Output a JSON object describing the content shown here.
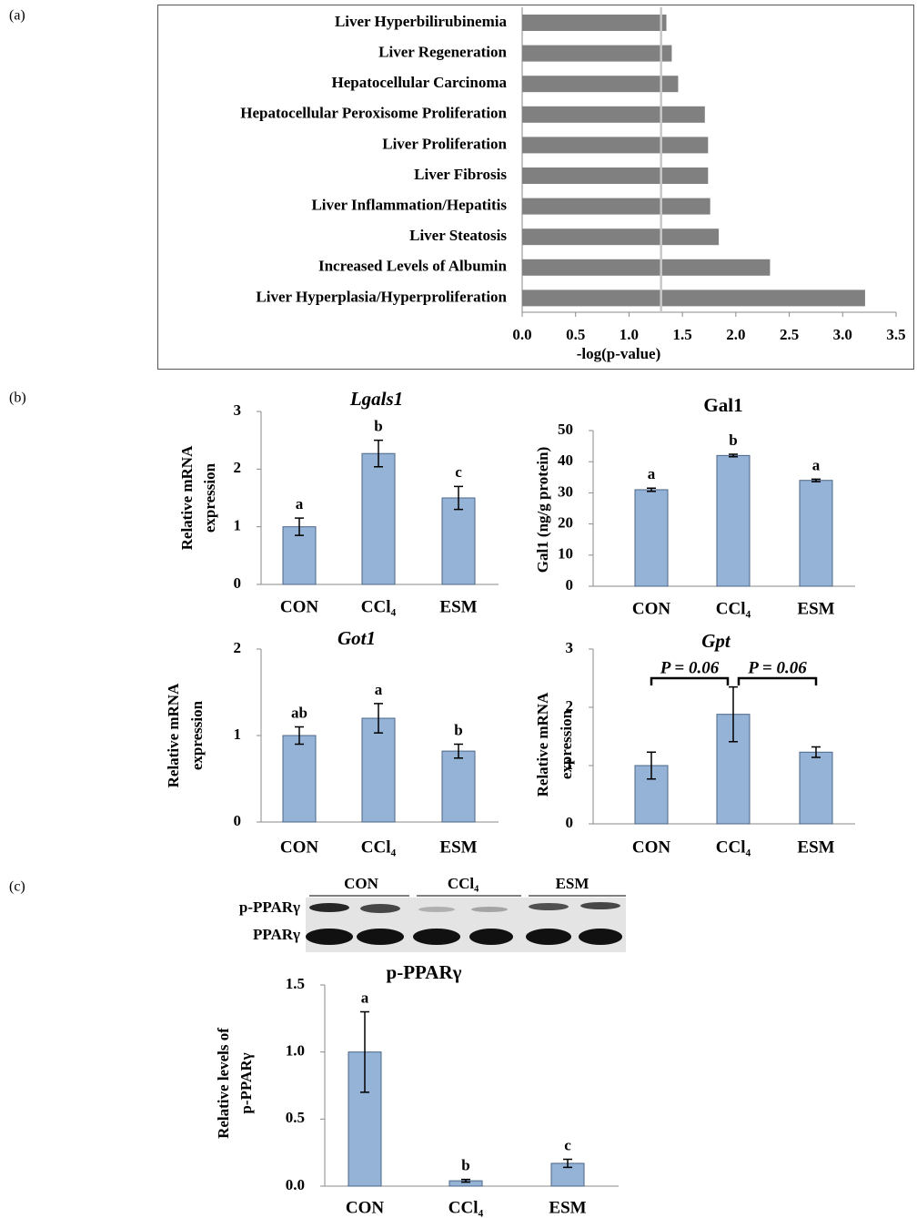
{
  "panel_labels": [
    "(a)",
    "(b)",
    "(c)"
  ],
  "chart_data": [
    {
      "type": "hbar",
      "xlabel": "-log(p-value)",
      "categories": [
        "Liver Hyperbilirubinemia",
        "Liver Regeneration",
        "Hepatocellular Carcinoma",
        "Hepatocellular Peroxisome Proliferation",
        "Liver Proliferation",
        "Liver Fibrosis",
        "Liver Inflammation/Hepatitis",
        "Liver Steatosis",
        "Increased Levels of Albumin",
        "Liver Hyperplasia/Hyperproliferation"
      ],
      "values": [
        1.35,
        1.4,
        1.46,
        1.71,
        1.74,
        1.74,
        1.76,
        1.84,
        2.32,
        3.21
      ],
      "color": "#808080",
      "threshold": 1.3,
      "threshold_color": "#c8c8c8",
      "xlim": [
        0,
        3.5
      ],
      "xticks": [
        {
          "value": 0,
          "label": "0.0"
        },
        {
          "value": 0.5,
          "label": "0.5"
        },
        {
          "value": 1,
          "label": "1.0"
        },
        {
          "value": 1.5,
          "label": "1.5"
        },
        {
          "value": 2,
          "label": "2.0"
        },
        {
          "value": 2.5,
          "label": "2.5"
        },
        {
          "value": 3,
          "label": "3.0"
        },
        {
          "value": 3.5,
          "label": "3.5"
        }
      ]
    },
    {
      "type": "bar",
      "title": "Lgals1",
      "ylabel": [
        "Relative mRNA",
        "expression"
      ],
      "categories": [
        "CON",
        "CCl₄",
        "ESM"
      ],
      "values": [
        1.0,
        2.27,
        1.5
      ],
      "errors": [
        0.15,
        0.23,
        0.2
      ],
      "letters": [
        "a",
        "b",
        "c"
      ],
      "color": "#95b3d7",
      "ylim": [
        0,
        3
      ],
      "yticks": [
        0,
        1,
        2,
        3
      ]
    },
    {
      "type": "bar",
      "title": "Gal1",
      "ylabel": [
        "Gal1 (ng/g protein)"
      ],
      "categories": [
        "CON",
        "CCl₄",
        "ESM"
      ],
      "values": [
        31,
        42,
        34
      ],
      "errors": [
        0.5,
        0.4,
        0.4
      ],
      "letters": [
        "a",
        "b",
        "a"
      ],
      "color": "#95b3d7",
      "ylim": [
        0,
        50
      ],
      "yticks": [
        0,
        10,
        20,
        30,
        40,
        50
      ]
    },
    {
      "type": "bar",
      "title": "Got1",
      "ylabel": [
        "Relative mRNA",
        "expression"
      ],
      "categories": [
        "CON",
        "CCl₄",
        "ESM"
      ],
      "values": [
        1.0,
        1.2,
        0.82
      ],
      "errors": [
        0.1,
        0.17,
        0.08
      ],
      "letters": [
        "ab",
        "a",
        "b"
      ],
      "color": "#95b3d7",
      "ylim": [
        0,
        2
      ],
      "yticks": [
        0,
        1,
        2
      ]
    },
    {
      "type": "bar",
      "title": "Gpt",
      "ylabel": [
        "Relative mRNA",
        "expression"
      ],
      "categories": [
        "CON",
        "CCl₄",
        "ESM"
      ],
      "values": [
        1.0,
        1.88,
        1.23
      ],
      "errors": [
        0.23,
        0.47,
        0.09
      ],
      "annotations": [
        "P = 0.06",
        "P = 0.06"
      ],
      "color": "#95b3d7",
      "ylim": [
        0,
        3
      ],
      "yticks": [
        0,
        1,
        2,
        3
      ]
    },
    {
      "type": "bar",
      "title": "p-PPARγ",
      "ylabel": [
        "Relative levels of",
        "p-PPARγ"
      ],
      "categories": [
        "CON",
        "CCl₄",
        "ESM"
      ],
      "values": [
        1.0,
        0.04,
        0.17
      ],
      "errors": [
        0.3,
        0.01,
        0.03
      ],
      "letters": [
        "a",
        "b",
        "c"
      ],
      "color": "#95b3d7",
      "ylim": [
        0,
        1.5
      ],
      "yticks": [
        {
          "value": 0,
          "label": "0.0"
        },
        {
          "value": 0.5,
          "label": "0.5"
        },
        {
          "value": 1,
          "label": "1.0"
        },
        {
          "value": 1.5,
          "label": "1.5"
        }
      ]
    }
  ],
  "blot": {
    "groups": [
      "CON",
      "CCl₄",
      "ESM"
    ],
    "rows": [
      "p-PPARγ",
      "PPARγ"
    ]
  }
}
